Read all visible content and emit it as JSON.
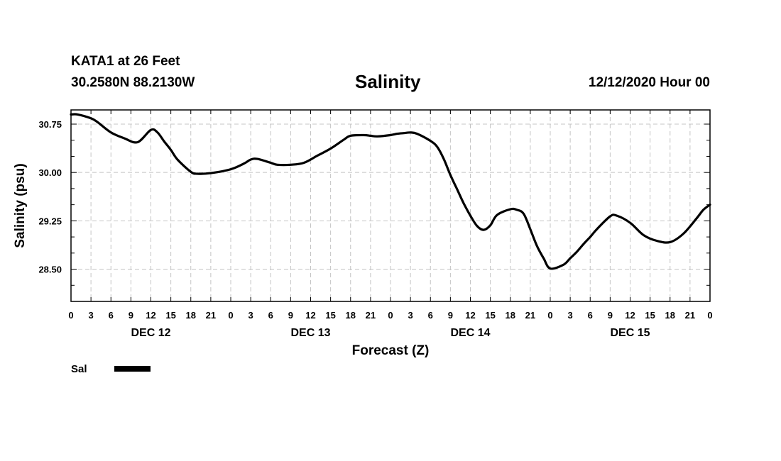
{
  "header": {
    "station": "KATA1 at 26 Feet",
    "coords": "30.2580N 88.2130W",
    "title": "Salinity",
    "run_time": "12/12/2020 Hour 00"
  },
  "legend": {
    "label": "Sal",
    "color": "#000000"
  },
  "chart_data": {
    "type": "line",
    "title": "Salinity",
    "xlabel": "Forecast (Z)",
    "ylabel": "Salinity (psu)",
    "xlim": [
      0,
      96
    ],
    "ylim": [
      28.0,
      30.97
    ],
    "yticks": [
      "28.50",
      "29.25",
      "30.00",
      "30.75"
    ],
    "ytick_values": [
      28.5,
      29.25,
      30.0,
      30.75
    ],
    "xtick_hours": [
      0,
      3,
      6,
      9,
      12,
      15,
      18,
      21,
      24,
      27,
      30,
      33,
      36,
      39,
      42,
      45,
      48,
      51,
      54,
      57,
      60,
      63,
      66,
      69,
      72,
      75,
      78,
      81,
      84,
      87,
      90,
      93,
      96
    ],
    "xtick_labels": [
      "0",
      "3",
      "6",
      "9",
      "12",
      "15",
      "18",
      "21",
      "0",
      "3",
      "6",
      "9",
      "12",
      "15",
      "18",
      "21",
      "0",
      "3",
      "6",
      "9",
      "12",
      "15",
      "18",
      "21",
      "0",
      "3",
      "6",
      "9",
      "12",
      "15",
      "18",
      "21",
      "0"
    ],
    "day_labels": [
      {
        "label": "DEC 12",
        "hour": 12
      },
      {
        "label": "DEC 13",
        "hour": 36
      },
      {
        "label": "DEC 14",
        "hour": 60
      },
      {
        "label": "DEC 15",
        "hour": 84
      }
    ],
    "grid": true,
    "series": [
      {
        "name": "Sal",
        "x": [
          0,
          1,
          3,
          4,
          6,
          8,
          10,
          12,
          13,
          14,
          15,
          16,
          18,
          19,
          21,
          24,
          26,
          27,
          28,
          30,
          31,
          33,
          35,
          37,
          39,
          41,
          42,
          44,
          45,
          46,
          48,
          49,
          50,
          51,
          52,
          54,
          55,
          56,
          57,
          58,
          59,
          60,
          61,
          62,
          63,
          64,
          66,
          67,
          68,
          69,
          70,
          71,
          72,
          74,
          75,
          76,
          77,
          78,
          79,
          81,
          82,
          84,
          86,
          88,
          90,
          92,
          94,
          95,
          96
        ],
        "y": [
          30.9,
          30.9,
          30.84,
          30.78,
          30.62,
          30.53,
          30.47,
          30.66,
          30.62,
          30.48,
          30.35,
          30.2,
          30.01,
          29.98,
          29.99,
          30.05,
          30.14,
          30.2,
          30.21,
          30.15,
          30.12,
          30.12,
          30.15,
          30.26,
          30.37,
          30.51,
          30.57,
          30.58,
          30.57,
          30.56,
          30.58,
          30.6,
          30.61,
          30.62,
          30.6,
          30.49,
          30.4,
          30.21,
          29.96,
          29.74,
          29.52,
          29.33,
          29.17,
          29.11,
          29.18,
          29.34,
          29.43,
          29.42,
          29.36,
          29.12,
          28.86,
          28.67,
          28.51,
          28.57,
          28.67,
          28.77,
          28.89,
          29.0,
          29.12,
          29.32,
          29.33,
          29.22,
          29.03,
          28.94,
          28.92,
          29.05,
          29.29,
          29.42,
          29.5
        ]
      }
    ]
  }
}
